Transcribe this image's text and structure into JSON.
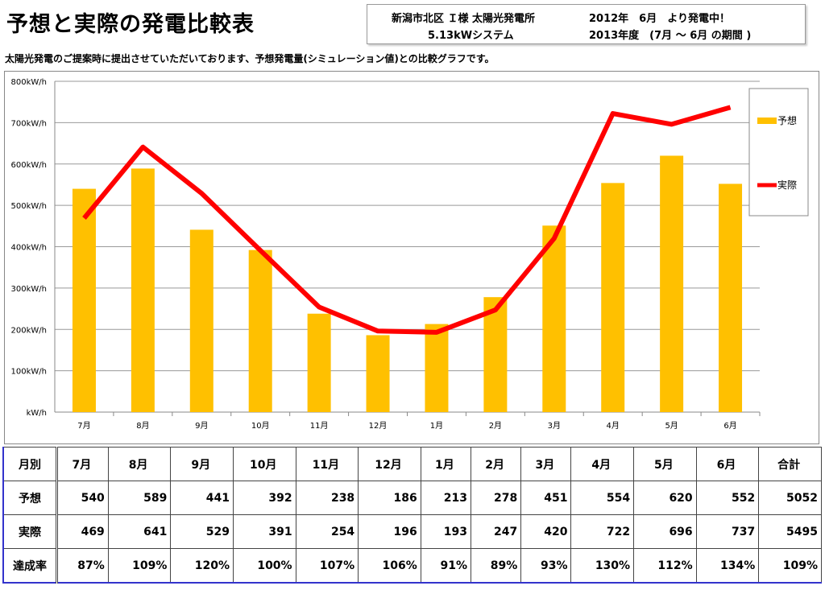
{
  "title": "予想と実際の発電比較表",
  "info": {
    "line1a": "新潟市北区 Ｉ様 太陽光発電所",
    "line1b": "2012年　6月　より発電中！",
    "line2a": "5.13kWシステム",
    "line2b": "2013年度　(7月 ～ 6月 の期間 )"
  },
  "subtitle": "太陽光発電のご提案時に提出させていただいております、予想発電量(シミュレーション値)との比較グラフです。",
  "colors": {
    "forecast": "#FFC000",
    "actual": "#FF0000"
  },
  "chart_data": {
    "type": "bar+line",
    "categories": [
      "7月",
      "8月",
      "9月",
      "10月",
      "11月",
      "12月",
      "1月",
      "2月",
      "3月",
      "4月",
      "5月",
      "6月"
    ],
    "series": [
      {
        "name": "予想",
        "type": "bar",
        "values": [
          540,
          589,
          441,
          392,
          238,
          186,
          213,
          278,
          451,
          554,
          620,
          552
        ]
      },
      {
        "name": "実際",
        "type": "line",
        "values": [
          469,
          641,
          529,
          391,
          254,
          196,
          193,
          247,
          420,
          722,
          696,
          737
        ]
      }
    ],
    "ylim": [
      0,
      800
    ],
    "yticks": [
      "kW/h",
      "100kW/h",
      "200kW/h",
      "300kW/h",
      "400kW/h",
      "500kW/h",
      "600kW/h",
      "700kW/h",
      "800kW/h"
    ],
    "legend": "right"
  },
  "table": {
    "header": [
      "月別",
      "7月",
      "8月",
      "9月",
      "10月",
      "11月",
      "12月",
      "1月",
      "2月",
      "3月",
      "4月",
      "5月",
      "6月",
      "合計"
    ],
    "rows": [
      [
        "予想",
        "540",
        "589",
        "441",
        "392",
        "238",
        "186",
        "213",
        "278",
        "451",
        "554",
        "620",
        "552",
        "5052"
      ],
      [
        "実際",
        "469",
        "641",
        "529",
        "391",
        "254",
        "196",
        "193",
        "247",
        "420",
        "722",
        "696",
        "737",
        "5495"
      ],
      [
        "達成率",
        "87%",
        "109%",
        "120%",
        "100%",
        "107%",
        "106%",
        "91%",
        "89%",
        "93%",
        "130%",
        "112%",
        "134%",
        "109%"
      ]
    ]
  }
}
